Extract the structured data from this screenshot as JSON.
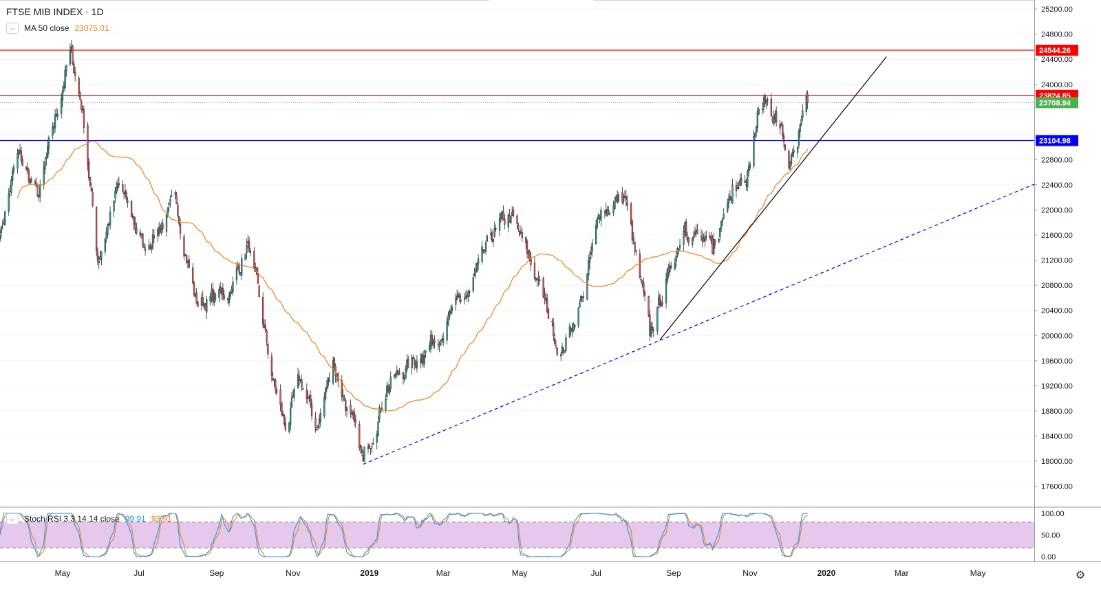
{
  "header": {
    "symbol_title": "FTSE MIB INDEX · 1D",
    "ma_label": "MA 50 close",
    "ma_value": "23075.01",
    "rsi_label": "Stoch RSI 3 3 14 14 close",
    "rsi_k_value": "99.91",
    "rsi_d_value": "93.91"
  },
  "colors": {
    "up": "#26a69a",
    "down": "#ef5350",
    "ma": "#f57f17",
    "red_line": "#ff0000",
    "blue_line": "#0000ff",
    "rsi_k": "#2196f3",
    "rsi_d": "#f57f17",
    "rsi_band": "#e1bee7"
  },
  "icons": {
    "collapse": "chevron-down-icon",
    "settings": "gear-icon"
  },
  "chart_data": [
    {
      "type": "candlestick",
      "title": "FTSE MIB INDEX · 1D",
      "ylim": [
        17200,
        25400
      ],
      "y_ticks": [
        "25200.00",
        "24800.00",
        "24400.00",
        "24000.00",
        "22800.00",
        "22400.00",
        "22000.00",
        "21600.00",
        "21200.00",
        "20800.00",
        "20400.00",
        "20000.00",
        "19600.00",
        "19200.00",
        "18800.00",
        "18400.00",
        "18000.00",
        "17600.00"
      ],
      "x_labels": [
        "May",
        "Jul",
        "Sep",
        "Nov",
        "2019",
        "Mar",
        "May",
        "Jul",
        "Sep",
        "Nov",
        "2020",
        "Mar",
        "May"
      ],
      "x_range": [
        "2018-03-12",
        "2020-06-15"
      ],
      "horizontal_levels": [
        {
          "value": 24544.26,
          "label": "24544.26",
          "color": "#ff0000"
        },
        {
          "value": 23824.85,
          "label": "23824.85",
          "color": "#ff0000"
        },
        {
          "value": 23104.98,
          "label": "23104.98",
          "color": "#0000ff"
        }
      ],
      "last_price": {
        "value": 23708.94,
        "label": "23708.94"
      },
      "anchors": [
        {
          "date": "2018-03-12",
          "close": 21600
        },
        {
          "date": "2018-03-26",
          "close": 22900
        },
        {
          "date": "2018-04-12",
          "close": 22200
        },
        {
          "date": "2018-05-07",
          "close": 24544
        },
        {
          "date": "2018-05-17",
          "close": 23600
        },
        {
          "date": "2018-05-29",
          "close": 21200
        },
        {
          "date": "2018-06-15",
          "close": 22400
        },
        {
          "date": "2018-07-05",
          "close": 21400
        },
        {
          "date": "2018-07-31",
          "close": 22100
        },
        {
          "date": "2018-08-16",
          "close": 20500
        },
        {
          "date": "2018-09-12",
          "close": 20700
        },
        {
          "date": "2018-09-26",
          "close": 21500
        },
        {
          "date": "2018-10-16",
          "close": 19300
        },
        {
          "date": "2018-10-26",
          "close": 18500
        },
        {
          "date": "2018-11-07",
          "close": 19300
        },
        {
          "date": "2018-11-20",
          "close": 18500
        },
        {
          "date": "2018-12-03",
          "close": 19600
        },
        {
          "date": "2018-12-27",
          "close": 18000
        },
        {
          "date": "2019-01-15",
          "close": 19200
        },
        {
          "date": "2019-02-12",
          "close": 19700
        },
        {
          "date": "2019-03-22",
          "close": 20700
        },
        {
          "date": "2019-04-12",
          "close": 21700
        },
        {
          "date": "2019-04-24",
          "close": 21900
        },
        {
          "date": "2019-05-15",
          "close": 20900
        },
        {
          "date": "2019-06-03",
          "close": 19700
        },
        {
          "date": "2019-06-20",
          "close": 20600
        },
        {
          "date": "2019-07-05",
          "close": 22000
        },
        {
          "date": "2019-07-24",
          "close": 22200
        },
        {
          "date": "2019-08-13",
          "close": 20000
        },
        {
          "date": "2019-08-28",
          "close": 21000
        },
        {
          "date": "2019-09-10",
          "close": 21800
        },
        {
          "date": "2019-10-02",
          "close": 21300
        },
        {
          "date": "2019-10-18",
          "close": 22400
        },
        {
          "date": "2019-10-31",
          "close": 22700
        },
        {
          "date": "2019-11-08",
          "close": 23600
        },
        {
          "date": "2019-11-15",
          "close": 23750
        },
        {
          "date": "2019-11-25",
          "close": 23300
        },
        {
          "date": "2019-12-03",
          "close": 22700
        },
        {
          "date": "2019-12-09",
          "close": 23000
        },
        {
          "date": "2019-12-17",
          "close": 23708.94
        }
      ],
      "moving_average": {
        "name": "MA 50 close",
        "last": 23075.01
      },
      "trendlines": [
        {
          "style": "solid",
          "color": "#000000",
          "from": {
            "date": "2019-08-21",
            "value": 19930
          },
          "to": {
            "date": "2020-02-18",
            "value": 24440
          }
        },
        {
          "style": "dashed",
          "color": "#0000ff",
          "from": {
            "date": "2018-12-27",
            "value": 17950
          },
          "to": {
            "date": "2020-06-15",
            "value": 22410
          }
        }
      ]
    },
    {
      "type": "line",
      "title": "Stoch RSI 3 3 14 14 close",
      "ylim": [
        0,
        100
      ],
      "y_ticks": [
        "100.00",
        "50.00",
        "0.00"
      ],
      "band": [
        20,
        80
      ],
      "series": [
        {
          "name": "K",
          "last": 99.91
        },
        {
          "name": "D",
          "last": 93.91
        }
      ]
    }
  ]
}
